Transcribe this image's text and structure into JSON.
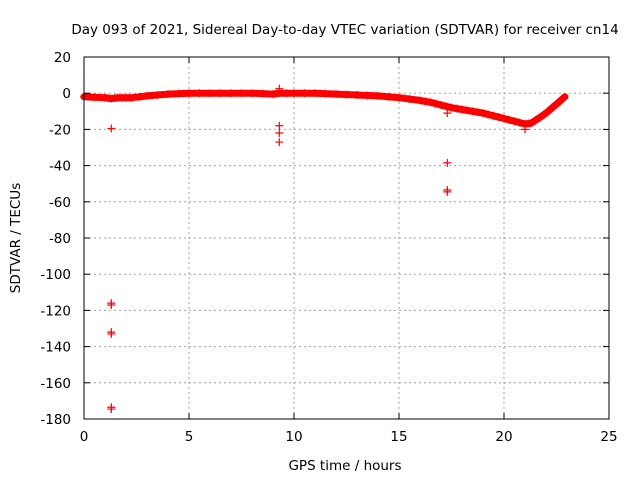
{
  "chart_data": {
    "type": "scatter",
    "title": "Day 093 of 2021, Sidereal Day-to-day VTEC variation (SDTVAR) for receiver cn14",
    "xlabel": "GPS time / hours",
    "ylabel": "SDTVAR / TECUs",
    "xlim": [
      0,
      25
    ],
    "ylim": [
      -180,
      20
    ],
    "xticks": [
      0,
      5,
      10,
      15,
      20,
      25
    ],
    "yticks": [
      20,
      0,
      -20,
      -40,
      -60,
      -80,
      -100,
      -120,
      -140,
      -160,
      -180
    ],
    "grid": true,
    "marker": "+",
    "series": [
      {
        "name": "SDTVAR",
        "color": "#ff0000",
        "curve": [
          [
            0.0,
            -2
          ],
          [
            1.0,
            -2.5
          ],
          [
            1.3,
            -3
          ],
          [
            1.6,
            -2.5
          ],
          [
            2.0,
            -2.5
          ],
          [
            2.3,
            -2.5
          ],
          [
            3.0,
            -1.5
          ],
          [
            4.0,
            -0.5
          ],
          [
            5.0,
            0
          ],
          [
            6.0,
            0
          ],
          [
            7.0,
            0
          ],
          [
            8.0,
            0
          ],
          [
            9.0,
            -0.5
          ],
          [
            9.3,
            0
          ],
          [
            10.0,
            0
          ],
          [
            11.0,
            0
          ],
          [
            12.0,
            -0.5
          ],
          [
            13.0,
            -1
          ],
          [
            14.0,
            -1.5
          ],
          [
            15.0,
            -2.5
          ],
          [
            16.0,
            -4
          ],
          [
            16.5,
            -5
          ],
          [
            17.0,
            -6.5
          ],
          [
            17.5,
            -8
          ],
          [
            18.0,
            -9
          ],
          [
            18.5,
            -10
          ],
          [
            19.0,
            -11
          ],
          [
            19.5,
            -12.5
          ],
          [
            20.0,
            -14
          ],
          [
            20.5,
            -15.5
          ],
          [
            21.0,
            -17
          ],
          [
            21.3,
            -16.5
          ],
          [
            21.7,
            -13.5
          ],
          [
            22.0,
            -11
          ],
          [
            22.3,
            -8
          ],
          [
            22.6,
            -5
          ],
          [
            22.9,
            -2
          ]
        ],
        "outliers": [
          [
            1.3,
            -19.5
          ],
          [
            1.3,
            -116
          ],
          [
            1.3,
            -117
          ],
          [
            1.3,
            -132
          ],
          [
            1.3,
            -133
          ],
          [
            1.3,
            -173.5
          ],
          [
            1.3,
            -174.5
          ],
          [
            9.3,
            2.5
          ],
          [
            9.3,
            -18
          ],
          [
            9.3,
            -22
          ],
          [
            9.3,
            -27
          ],
          [
            17.3,
            -11
          ],
          [
            17.3,
            -38.5
          ],
          [
            17.3,
            -53.5
          ],
          [
            17.3,
            -54.5
          ],
          [
            21.0,
            -20
          ]
        ]
      }
    ]
  }
}
